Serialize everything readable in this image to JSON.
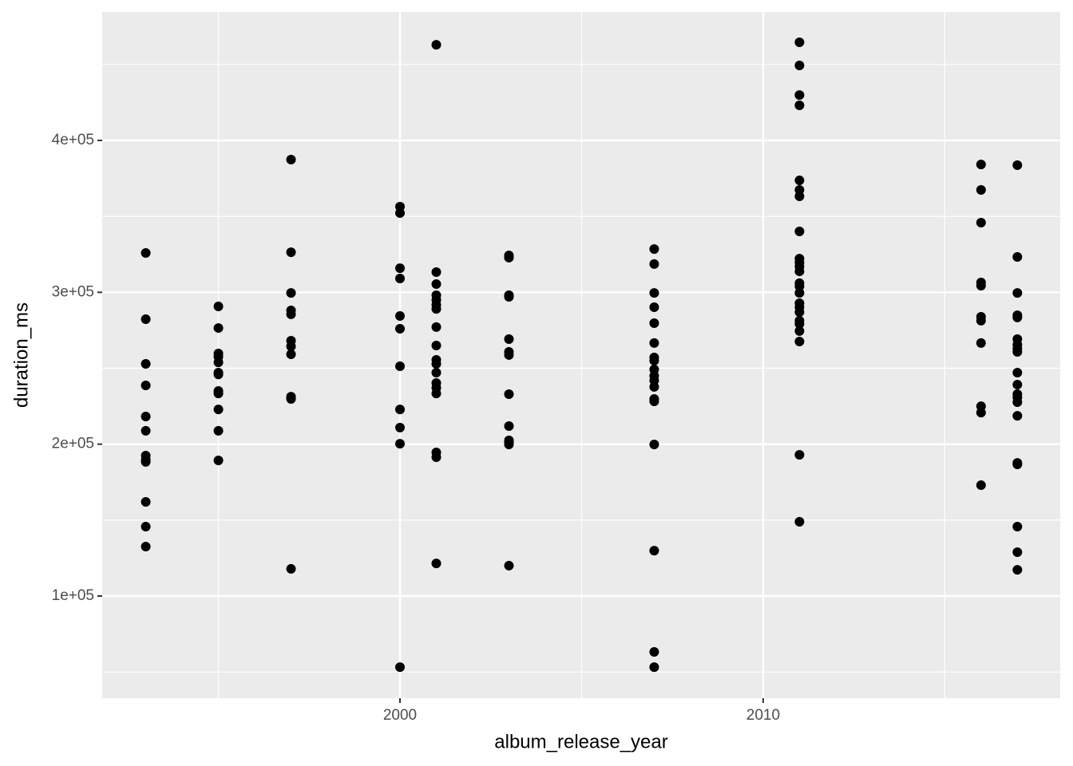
{
  "chart_data": {
    "type": "scatter",
    "x_label": "album_release_year",
    "y_label": "duration_ms",
    "xlim": [
      1991.8,
      2018.18
    ],
    "ylim": [
      32750,
      484590
    ],
    "xticks": [
      2000,
      2010
    ],
    "yticks": [
      {
        "value": 100000,
        "label": "1e+05"
      },
      {
        "value": 200000,
        "label": "2e+05"
      },
      {
        "value": 300000,
        "label": "3e+05"
      },
      {
        "value": 400000,
        "label": "4e+05"
      }
    ],
    "grid": true,
    "minor_grid": true,
    "x": [
      1993,
      1993,
      1993,
      1993,
      1993,
      1993,
      1993,
      1993,
      1993,
      1993,
      1993,
      1993,
      1995,
      1995,
      1995,
      1995,
      1995,
      1995,
      1995,
      1995,
      1995,
      1995,
      1995,
      1995,
      1997,
      1997,
      1997,
      1997,
      1997,
      1997,
      1997,
      1997,
      1997,
      1997,
      1997,
      2000,
      2000,
      2000,
      2000,
      2000,
      2000,
      2000,
      2000,
      2000,
      2000,
      2000,
      2001,
      2001,
      2001,
      2001,
      2001,
      2001,
      2001,
      2001,
      2001,
      2001,
      2001,
      2001,
      2001,
      2001,
      2001,
      2001,
      2001,
      2001,
      2003,
      2003,
      2003,
      2003,
      2003,
      2003,
      2003,
      2003,
      2003,
      2003,
      2003,
      2003,
      2003,
      2007,
      2007,
      2007,
      2007,
      2007,
      2007,
      2007,
      2007,
      2007,
      2007,
      2007,
      2007,
      2007,
      2007,
      2007,
      2007,
      2007,
      2007,
      2011,
      2011,
      2011,
      2011,
      2011,
      2011,
      2011,
      2011,
      2011,
      2011,
      2011,
      2011,
      2011,
      2011,
      2011,
      2011,
      2011,
      2011,
      2011,
      2011,
      2011,
      2011,
      2011,
      2011,
      2016,
      2016,
      2016,
      2016,
      2016,
      2016,
      2016,
      2016,
      2016,
      2016,
      2016,
      2017,
      2017,
      2017,
      2017,
      2017,
      2017,
      2017,
      2017,
      2017,
      2017,
      2017,
      2017,
      2017,
      2017,
      2017,
      2017,
      2017,
      2017,
      2017,
      2017
    ],
    "series": [
      {
        "color": "#000000",
        "values": [
          325900,
          282300,
          252900,
          238700,
          218200,
          208800,
          192500,
          189800,
          188300,
          162000,
          145700,
          132600,
          290700,
          276500,
          259700,
          257600,
          253900,
          247100,
          245900,
          235000,
          233400,
          222900,
          208800,
          189300,
          387400,
          326400,
          299600,
          288100,
          285500,
          268100,
          264400,
          259200,
          231300,
          229800,
          117900,
          356400,
          352200,
          315900,
          309100,
          284400,
          276000,
          251300,
          222900,
          210900,
          200300,
          53200,
          463000,
          313300,
          305400,
          298100,
          295000,
          291800,
          289100,
          277100,
          265000,
          255500,
          252900,
          247100,
          240300,
          237100,
          233400,
          194600,
          191400,
          121500,
          324300,
          322800,
          298100,
          297000,
          269200,
          260800,
          258700,
          232900,
          211900,
          202500,
          201400,
          199800,
          120000,
          328500,
          318600,
          299600,
          290200,
          279700,
          266600,
          257100,
          255000,
          249200,
          245000,
          241900,
          237700,
          229800,
          228200,
          199800,
          129900,
          63200,
          53200,
          464600,
          449400,
          429900,
          423100,
          373700,
          367400,
          363200,
          340100,
          322200,
          319600,
          317000,
          313800,
          306000,
          303900,
          299600,
          292800,
          290200,
          287000,
          281300,
          279200,
          274500,
          267600,
          193000,
          148900,
          384200,
          367400,
          345900,
          306500,
          304400,
          283900,
          281300,
          266600,
          225000,
          220800,
          173000,
          383700,
          323300,
          299600,
          284900,
          283400,
          269200,
          265500,
          262900,
          260800,
          247100,
          239200,
          232900,
          230800,
          227700,
          218700,
          187700,
          186700,
          145700,
          128900,
          117300
        ]
      }
    ]
  }
}
